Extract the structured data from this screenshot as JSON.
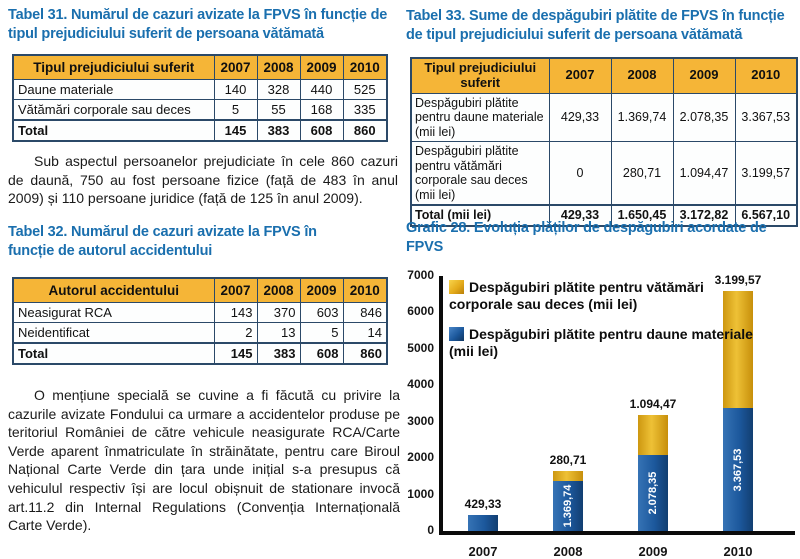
{
  "left": {
    "tabel31": {
      "title": "Tabel 31. Numărul de cazuri avizate la FPVS în funcție de tipul prejudiciului suferit de persoana vătămată",
      "table": {
        "headers": [
          "Tipul prejudiciului suferit",
          "2007",
          "2008",
          "2009",
          "2010"
        ],
        "rows": [
          {
            "label": "Daune materiale",
            "values": [
              "140",
              "328",
              "440",
              "525"
            ]
          },
          {
            "label": "Vătămări corporale sau deces",
            "values": [
              "5",
              "55",
              "168",
              "335"
            ]
          },
          {
            "label": "Total",
            "values": [
              "145",
              "383",
              "608",
              "860"
            ]
          }
        ]
      }
    },
    "paragraph1": "Sub aspectul persoanelor prejudiciate în cele 860 cazuri de daună, 750 au fost persoane fizice (față de 483 în anul 2009) și 110 persoane juridice (față de 125 în anul 2009).",
    "tabel32": {
      "title": "Tabel 32. Numărul de cazuri avizate la FPVS în funcție de autorul accidentului",
      "table": {
        "headers": [
          "Autorul accidentului",
          "2007",
          "2008",
          "2009",
          "2010"
        ],
        "rows": [
          {
            "label": "Neasigurat RCA",
            "values": [
              "143",
              "370",
              "603",
              "846"
            ]
          },
          {
            "label": "Neidentificat",
            "values": [
              "2",
              "13",
              "5",
              "14"
            ]
          },
          {
            "label": "Total",
            "values": [
              "145",
              "383",
              "608",
              "860"
            ]
          }
        ]
      }
    },
    "paragraph2": "O mențiune specială se cuvine a fi făcută cu privire la cazurile avizate Fondului ca urmare a accidentelor produse pe teritoriul României de către vehicule neasigurate RCA/Carte Verde aparent înmatriculate în străinătate, pentru care Biroul Național Carte Verde din țara unde inițial s-a presupus că vehiculul respectiv își are locul obișnuit de stationare invocă art.11.2 din Internal Regulations (Convenția Internațională Carte Verde)."
  },
  "right": {
    "tabel33": {
      "title": "Tabel 33. Sume de despăgubiri plătite de FPVS în funcție de tipul prejudiciului suferit de persoana vătămată",
      "table": {
        "headers": [
          "Tipul prejudiciului suferit",
          "2007",
          "2008",
          "2009",
          "2010"
        ],
        "rows": [
          {
            "label": "Despăgubiri plătite pentru daune materiale (mii lei)",
            "values": [
              "429,33",
              "1.369,74",
              "2.078,35",
              "3.367,53"
            ]
          },
          {
            "label": "Despăgubiri plătite pentru vătămări corporale sau deces (mii lei)",
            "values": [
              "0",
              "280,71",
              "1.094,47",
              "3.199,57"
            ]
          },
          {
            "label": "Total (mii lei)",
            "values": [
              "429,33",
              "1.650,45",
              "3.172,82",
              "6.567,10"
            ]
          }
        ]
      }
    },
    "grafic28_title": "Grafic 28. Evoluția plăților de despăgubiri acordate de FPVS"
  },
  "chart_data": {
    "type": "bar",
    "stacked": true,
    "title": "Grafic 28. Evoluția plăților de despăgubiri acordate de FPVS",
    "categories": [
      "2007",
      "2008",
      "2009",
      "2010"
    ],
    "series": [
      {
        "name": "Despăgubiri plătite pentru daune materiale (mii lei)",
        "color": "#1c589c",
        "values": [
          429.33,
          1369.74,
          2078.35,
          3367.53
        ],
        "value_labels": [
          "429,33",
          "1.369,74",
          "2.078,35",
          "3.367,53"
        ]
      },
      {
        "name": "Despăgubiri plătite pentru vătămări corporale sau deces (mii lei)",
        "color": "#e4ab1b",
        "values": [
          0,
          280.71,
          1094.47,
          3199.57
        ],
        "value_labels": [
          "0",
          "280,71",
          "1.094,47",
          "3.199,57"
        ]
      }
    ],
    "totals": [
      429.33,
      1650.45,
      3172.82,
      6567.1
    ],
    "top_labels": [
      "429,33",
      "280,71",
      "1.094,47",
      "3.199,57"
    ],
    "inside_labels": [
      "",
      "1.369,74",
      "2.078,35",
      "3.367,53"
    ],
    "xlabel": "",
    "ylabel": "",
    "ylim": [
      0,
      7000
    ],
    "ytick_step": 1000,
    "grid": false,
    "legend_position": "top-left-inside"
  },
  "colors": {
    "heading_blue": "#1a6fae",
    "table_header_gold": "#f5b537",
    "table_border": "#2b4968",
    "bar_blue": "#1c589c",
    "bar_gold": "#e4ab1b"
  }
}
